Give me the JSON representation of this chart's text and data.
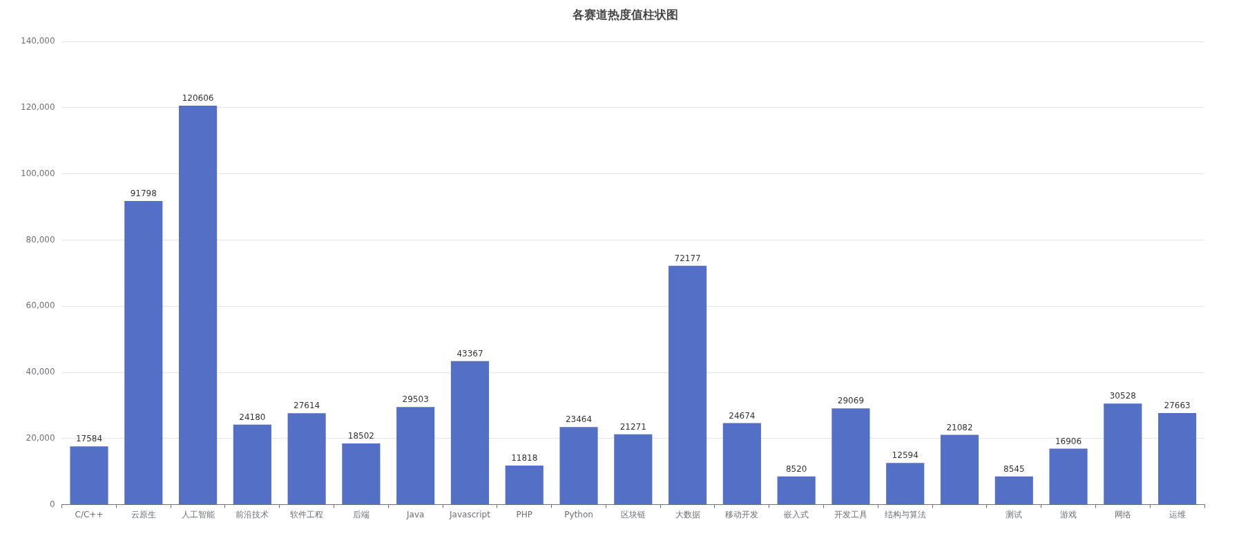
{
  "chart_data": {
    "type": "bar",
    "title": "各赛道热度值柱状图",
    "categories": [
      "C/C++",
      "云原生",
      "人工智能",
      "前沿技术",
      "软件工程",
      "后端",
      "Java",
      "Javascript",
      "PHP",
      "Python",
      "区块链",
      "大数据",
      "移动开发",
      "嵌入式",
      "开发工具",
      "结构与算法",
      null,
      "测试",
      "游戏",
      "网络",
      "运维"
    ],
    "values": [
      17584,
      91798,
      120606,
      24180,
      27614,
      18502,
      29503,
      43367,
      11818,
      23464,
      21271,
      72177,
      24674,
      8520,
      29069,
      12594,
      21082,
      8545,
      16906,
      30528,
      27663
    ],
    "color": "#5470c6",
    "ylim": [
      0,
      140000
    ],
    "yticks": [
      0,
      {
        "value": 20000,
        "label": "20,000"
      },
      {
        "value": 40000,
        "label": "40,000"
      },
      {
        "value": 60000,
        "label": "60,000"
      },
      {
        "value": 80000,
        "label": "80,000"
      },
      {
        "value": 100000,
        "label": "100,000"
      },
      {
        "value": 120000,
        "label": "120,000"
      },
      {
        "value": 140000,
        "label": "140,000"
      }
    ],
    "grid": "y",
    "data_labels": true,
    "legend": false
  }
}
